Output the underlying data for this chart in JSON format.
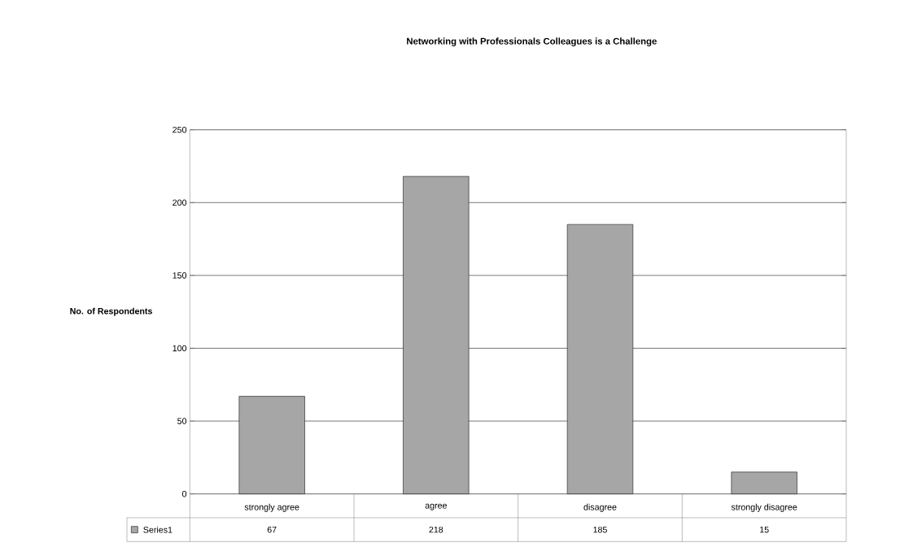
{
  "chart_data": {
    "type": "bar",
    "title": "Networking with Professionals Colleagues is a Challenge",
    "ylabel": "No. of Respondents",
    "categories": [
      "strongly agree",
      "agree",
      "disagree",
      "strongly disagree"
    ],
    "series": [
      {
        "name": "Series1",
        "color": "#a6a6a6",
        "values": [
          67,
          218,
          185,
          15
        ]
      }
    ],
    "ylim": [
      0,
      250
    ],
    "yticks": [
      0,
      50,
      100,
      150,
      200,
      250
    ],
    "grid": "y",
    "legend": "bottom",
    "data_labels": true
  }
}
